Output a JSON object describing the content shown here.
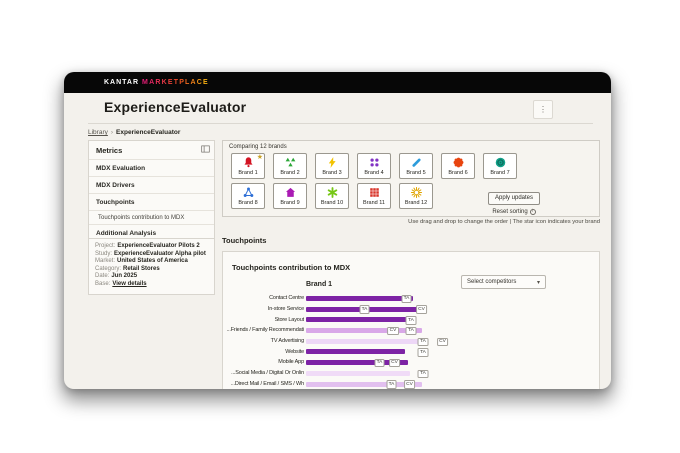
{
  "icons": {
    "kebab": "⋮",
    "breadcrumb_separator": "›",
    "dropdown_arrow": "▾",
    "star": "★"
  },
  "titlebar": {
    "brand_primary": "KANTAR",
    "brand_secondary": "MARKETPLACE"
  },
  "page": {
    "title": "ExperienceEvaluator"
  },
  "breadcrumb": {
    "parent": "Library",
    "current": "ExperienceEvaluator"
  },
  "sidebar": {
    "title": "Metrics",
    "items": [
      {
        "label": "MDX Evaluation",
        "type": "item"
      },
      {
        "label": "MDX Drivers",
        "type": "item"
      },
      {
        "label": "Touchpoints",
        "type": "item",
        "active": true
      },
      {
        "label": "Touchpoints contribution to MDX",
        "type": "subitem",
        "active": true
      },
      {
        "label": "Additional Analysis",
        "type": "item"
      }
    ]
  },
  "project_info": [
    {
      "label": "Project:",
      "value": "ExperienceEvaluator Pilots 2"
    },
    {
      "label": "Study:",
      "value": "ExperienceEvaluator Alpha pilot"
    },
    {
      "label": "Market:",
      "value": "United States of America"
    },
    {
      "label": "Category:",
      "value": "Retail Stores"
    },
    {
      "label": "Date:",
      "value": "Jun 2025"
    },
    {
      "label": "Base:",
      "value": "View details",
      "link": true
    }
  ],
  "brands_panel": {
    "title": "Comparing 12 brands",
    "apply_button": "Apply updates",
    "reset_link": "Reset sorting",
    "note": "Use drag and drop to change the order | The star icon indicates your brand",
    "brands": [
      {
        "name": "Brand 1",
        "icon": "bell",
        "color": "#D31423",
        "starred": true
      },
      {
        "name": "Brand 2",
        "icon": "trefoil-triangles",
        "color": "#2BA637"
      },
      {
        "name": "Brand 3",
        "icon": "lightning-bolt",
        "color": "#F2C200"
      },
      {
        "name": "Brand 4",
        "icon": "four-dots",
        "color": "#8233C4"
      },
      {
        "name": "Brand 5",
        "icon": "pencil",
        "color": "#2D9CDB"
      },
      {
        "name": "Brand 6",
        "icon": "flower-seal",
        "color": "#E8440F"
      },
      {
        "name": "Brand 7",
        "icon": "gem-wheel",
        "color": "#12A189"
      },
      {
        "name": "Brand 8",
        "icon": "molecule",
        "color": "#2E6FD6"
      },
      {
        "name": "Brand 9",
        "icon": "house",
        "color": "#AA1BB4"
      },
      {
        "name": "Brand 10",
        "icon": "asterisk",
        "color": "#76C716"
      },
      {
        "name": "Brand 11",
        "icon": "grid-squares",
        "color": "#D8352A"
      },
      {
        "name": "Brand 12",
        "icon": "starburst",
        "color": "#E0A400"
      }
    ]
  },
  "touchpoints": {
    "section_title": "Touchpoints",
    "card_title": "Touchpoints contribution to MDX",
    "dropdown_label": "Select competitors",
    "group_label": "Brand 1"
  },
  "chart_data": {
    "type": "bar",
    "orientation": "horizontal",
    "title": "Touchpoints contribution to MDX",
    "group": "Brand 1",
    "axis_range": [
      0,
      100
    ],
    "grid": false,
    "categories": [
      "Contact Centre",
      "In-store Service",
      "Store Layout",
      "Friends / Family Recommendati...",
      "TV Advertising",
      "Website",
      "Mobile App",
      "Social Media / Digital Or Onlin...",
      "Direct Mail / Email / SMS / Wh..."
    ],
    "series": [
      {
        "name": "Brand 1",
        "values": [
          71,
          79,
          73,
          77,
          76,
          66,
          68,
          69,
          77
        ]
      }
    ],
    "bar_colors": [
      "#7D23A5",
      "#7D23A5",
      "#7D23A5",
      "#D9A8E8",
      "#EDD7F6",
      "#7D23A5",
      "#7D23A5",
      "#F0DBF7",
      "#E2C0EF"
    ],
    "badges": [
      [
        {
          "label": "TA",
          "pos": 67
        }
      ],
      [
        {
          "label": "TA",
          "pos": 39
        },
        {
          "label": "CV",
          "pos": 77
        }
      ],
      [
        {
          "label": "TA",
          "pos": 70
        }
      ],
      [
        {
          "label": "CV",
          "pos": 58
        },
        {
          "label": "TA",
          "pos": 70
        }
      ],
      [
        {
          "label": "TA",
          "pos": 78
        },
        {
          "label": "CV",
          "pos": 91
        }
      ],
      [
        {
          "label": "TA",
          "pos": 78
        }
      ],
      [
        {
          "label": "TA",
          "pos": 49
        },
        {
          "label": "CV",
          "pos": 59
        }
      ],
      [
        {
          "label": "TA",
          "pos": 78
        }
      ],
      [
        {
          "label": "TA",
          "pos": 57
        },
        {
          "label": "CV",
          "pos": 69
        }
      ]
    ]
  }
}
